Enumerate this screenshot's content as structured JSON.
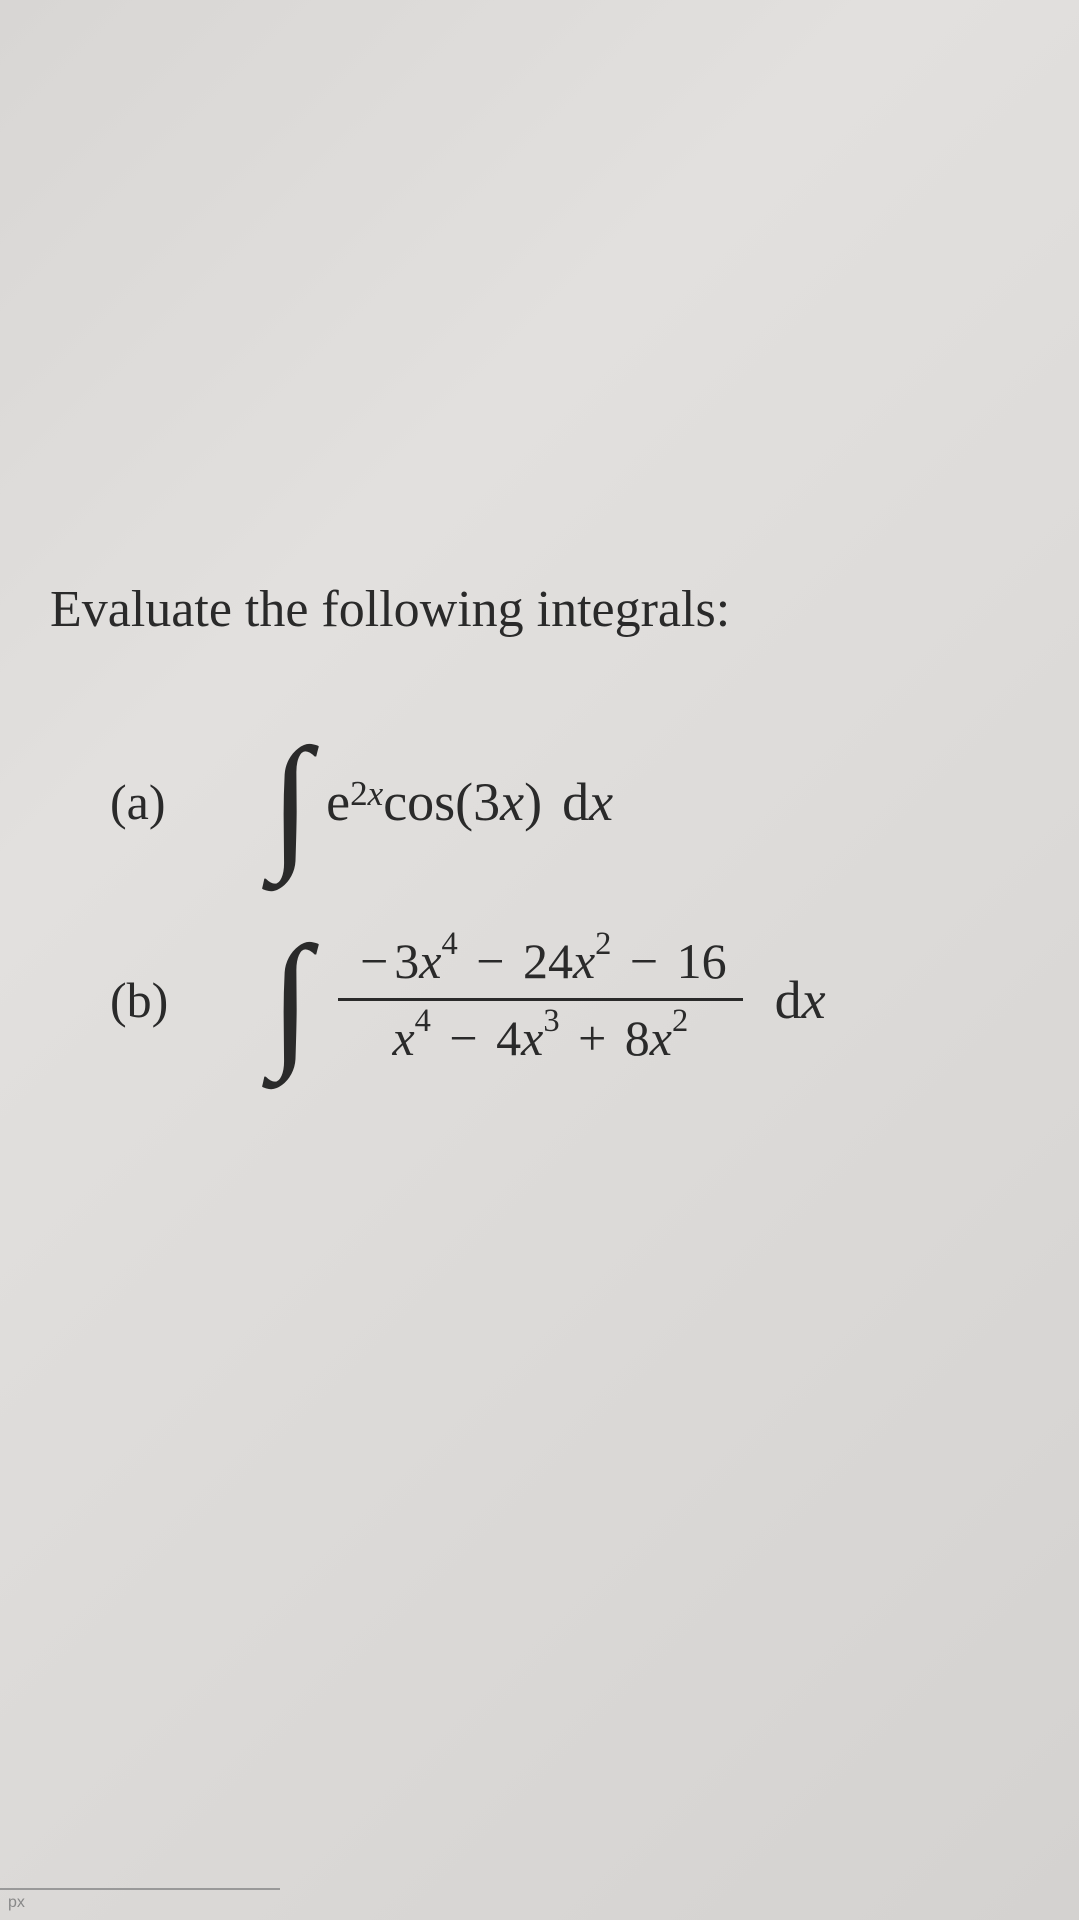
{
  "heading": "Evaluate the following integrals:",
  "problems": {
    "a": {
      "label": "(a)",
      "integrand_html": "e<sup>2<span class='italic'>x</span></sup> cos(3<span class='italic'>x</span>)",
      "dx": "d<span class='italic'>x</span>"
    },
    "b": {
      "label": "(b)",
      "numerator_html": "<span class='minus'>−</span>3<span class='italic'>x</span><sup>4</sup> <span class='minus'>−</span> 24<span class='italic'>x</span><sup>2</sup> <span class='minus'>−</span> 16",
      "denominator_html": "<span class='italic'>x</span><sup>4</sup> <span class='minus'>−</span> 4<span class='italic'>x</span><sup>3</sup> <span class='plus'>+</span> 8<span class='italic'>x</span><sup>2</sup>",
      "dx": "d<span class='italic'>x</span>"
    }
  },
  "bottom_label": "px",
  "styling": {
    "background_gradient": [
      "#d8d6d4",
      "#e2e0de",
      "#dcdad8",
      "#d4d2d0"
    ],
    "text_color": "#2a2a2a",
    "heading_fontsize": 52,
    "label_fontsize": 50,
    "expr_fontsize": 54,
    "fraction_fontsize": 50,
    "integral_fontsize": 150,
    "font_family": "Times New Roman"
  }
}
